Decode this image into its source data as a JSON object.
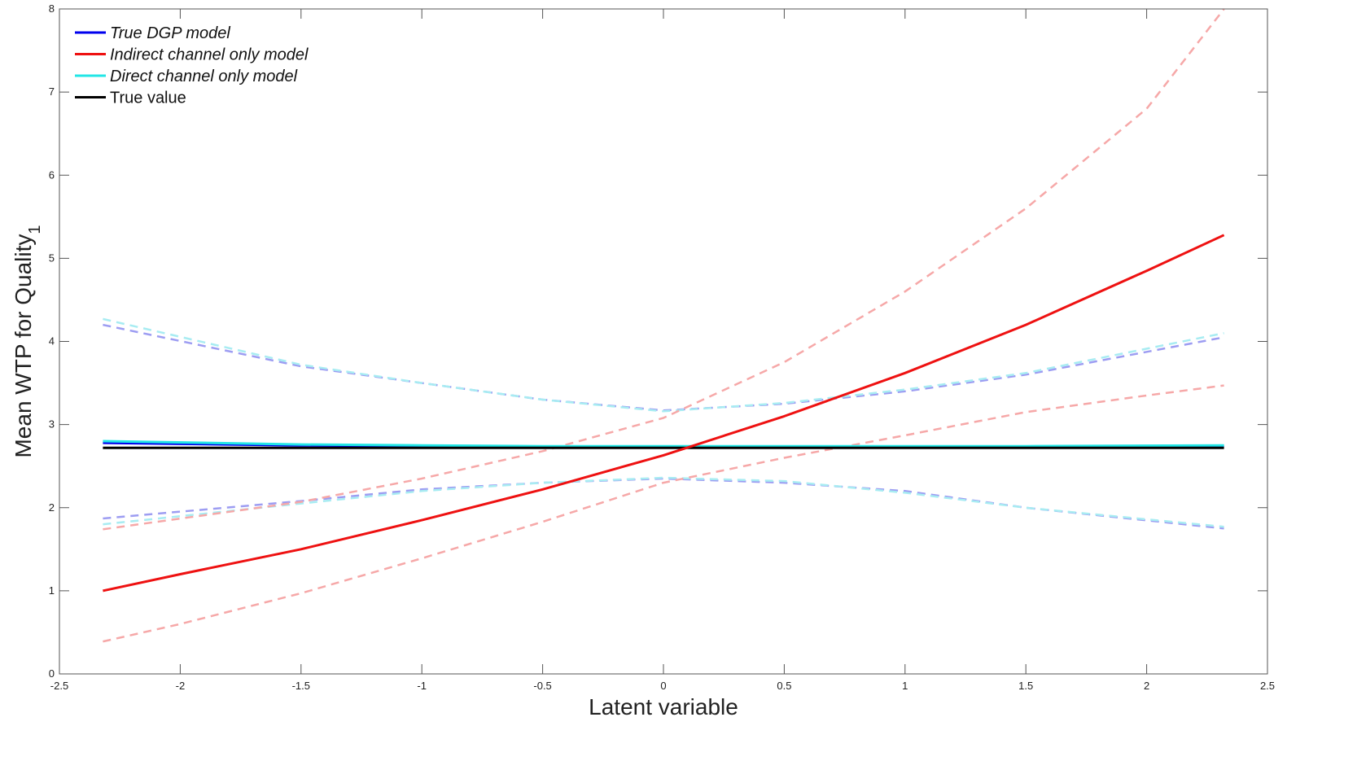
{
  "chart_data": {
    "type": "line",
    "title": "",
    "xlabel": "Latent variable",
    "ylabel": "Mean WTP for Quality",
    "ylabel_subscript": "1",
    "xlim": [
      -2.5,
      2.5
    ],
    "ylim": [
      0,
      8
    ],
    "x_ticks": [
      -2.5,
      -2,
      -1.5,
      -1,
      -0.5,
      0,
      0.5,
      1,
      1.5,
      2,
      2.5
    ],
    "x_tick_labels": [
      "-2.5",
      "-2",
      "-1.5",
      "-1",
      "-0.5",
      "0",
      "0.5",
      "1",
      "1.5",
      "2",
      "2.5"
    ],
    "y_ticks": [
      0,
      1,
      2,
      3,
      4,
      5,
      6,
      7,
      8
    ],
    "y_tick_labels": [
      "0",
      "1",
      "2",
      "3",
      "4",
      "5",
      "6",
      "7",
      "8"
    ],
    "grid": false,
    "legend_position": "top-left",
    "legend": [
      {
        "name": "True DGP model",
        "color": "#0000ee",
        "italic": true
      },
      {
        "name": "Indirect channel only model",
        "color": "#ee1111",
        "italic": true
      },
      {
        "name": "Direct channel only model",
        "color": "#22e6e6",
        "italic": true
      },
      {
        "name": "True value",
        "color": "#000000",
        "italic": false
      }
    ],
    "series": [
      {
        "key": "dgp_upper",
        "color": "#8c8cf0",
        "style": "dashed",
        "opacity": 0.85,
        "x": [
          -2.32,
          -1.5,
          -1.0,
          -0.5,
          0.0,
          0.5,
          1.0,
          1.5,
          2.32
        ],
        "values": [
          4.2,
          3.7,
          3.5,
          3.3,
          3.17,
          3.25,
          3.4,
          3.6,
          4.05
        ]
      },
      {
        "key": "dgp_lower",
        "color": "#8c8cf0",
        "style": "dashed",
        "opacity": 0.85,
        "x": [
          -2.32,
          -1.5,
          -1.0,
          -0.5,
          0.0,
          0.5,
          1.0,
          1.5,
          2.32
        ],
        "values": [
          1.87,
          2.08,
          2.22,
          2.3,
          2.35,
          2.3,
          2.2,
          2.0,
          1.75
        ]
      },
      {
        "key": "direct_upper",
        "color": "#a8ecf2",
        "style": "dashed",
        "opacity": 1,
        "x": [
          -2.32,
          -1.5,
          -1.0,
          -0.5,
          0.0,
          0.5,
          1.0,
          1.5,
          2.32
        ],
        "values": [
          4.27,
          3.72,
          3.5,
          3.3,
          3.16,
          3.26,
          3.42,
          3.62,
          4.1
        ]
      },
      {
        "key": "direct_lower",
        "color": "#a8ecf2",
        "style": "dashed",
        "opacity": 1,
        "x": [
          -2.32,
          -1.5,
          -1.0,
          -0.5,
          0.0,
          0.5,
          1.0,
          1.5,
          2.32
        ],
        "values": [
          1.8,
          2.05,
          2.2,
          2.3,
          2.36,
          2.32,
          2.18,
          2.0,
          1.77
        ]
      },
      {
        "key": "indirect_upper",
        "color": "#f6a8a8",
        "style": "dashed",
        "opacity": 1,
        "x": [
          -2.32,
          -1.5,
          -1.0,
          -0.5,
          0.0,
          0.5,
          1.0,
          1.5,
          2.0,
          2.32
        ],
        "values": [
          1.74,
          2.07,
          2.35,
          2.68,
          3.08,
          3.75,
          4.6,
          5.6,
          6.8,
          8.0
        ]
      },
      {
        "key": "indirect_lower",
        "color": "#f6a8a8",
        "style": "dashed",
        "opacity": 1,
        "x": [
          -2.32,
          -2.0,
          -1.5,
          -1.0,
          -0.5,
          0.0,
          0.5,
          1.0,
          1.5,
          2.0,
          2.32
        ],
        "values": [
          0.39,
          0.6,
          0.97,
          1.39,
          1.83,
          2.3,
          2.6,
          2.87,
          3.15,
          3.35,
          3.47
        ]
      },
      {
        "key": "true_dgp",
        "name": "True DGP model",
        "color": "#0000ee",
        "style": "solid",
        "opacity": 1,
        "x": [
          -2.32,
          -1.5,
          -1.0,
          -0.5,
          0.0,
          0.5,
          1.0,
          1.5,
          2.32
        ],
        "values": [
          2.78,
          2.75,
          2.74,
          2.73,
          2.73,
          2.73,
          2.73,
          2.73,
          2.74
        ]
      },
      {
        "key": "direct",
        "name": "Direct channel only model",
        "color": "#22e6e6",
        "style": "solid",
        "opacity": 1,
        "x": [
          -2.32,
          -1.5,
          -1.0,
          -0.5,
          0.0,
          0.5,
          1.0,
          1.5,
          2.32
        ],
        "values": [
          2.8,
          2.76,
          2.75,
          2.74,
          2.74,
          2.74,
          2.74,
          2.74,
          2.75
        ]
      },
      {
        "key": "true_value",
        "name": "True value",
        "color": "#000000",
        "style": "solid",
        "opacity": 1,
        "x": [
          -2.32,
          2.32
        ],
        "values": [
          2.72,
          2.72
        ]
      },
      {
        "key": "indirect",
        "name": "Indirect channel only model",
        "color": "#ee1111",
        "style": "solid",
        "opacity": 1,
        "x": [
          -2.32,
          -2.0,
          -1.5,
          -1.0,
          -0.5,
          0.0,
          0.5,
          1.0,
          1.5,
          2.0,
          2.32
        ],
        "values": [
          1.0,
          1.2,
          1.5,
          1.85,
          2.22,
          2.63,
          3.1,
          3.62,
          4.2,
          4.85,
          5.28
        ]
      }
    ]
  }
}
